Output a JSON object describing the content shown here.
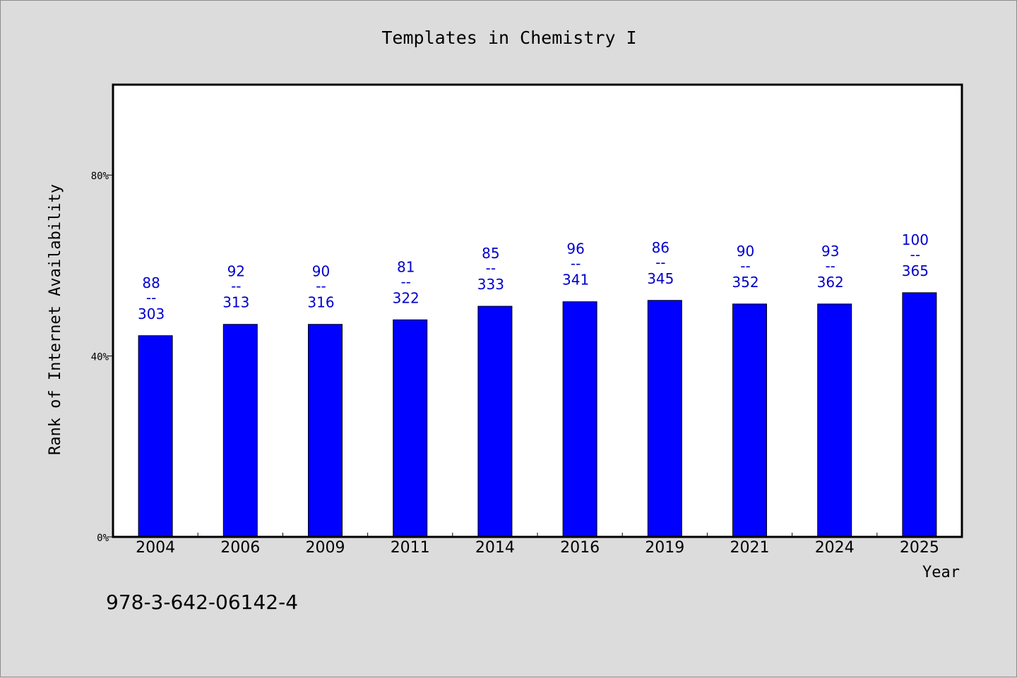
{
  "chart_data": {
    "type": "bar",
    "title": "Templates in Chemistry I",
    "xlabel": "Year",
    "ylabel": "Rank of Internet Availability",
    "categories": [
      "2004",
      "2006",
      "2009",
      "2011",
      "2014",
      "2016",
      "2019",
      "2021",
      "2024",
      "2025"
    ],
    "values": [
      44.5,
      47,
      47,
      48,
      51,
      52,
      52.3,
      51.5,
      51.5,
      54
    ],
    "label_top": [
      "88",
      "92",
      "90",
      "81",
      "85",
      "96",
      "86",
      "90",
      "93",
      "100"
    ],
    "label_bottom": [
      "303",
      "313",
      "316",
      "322",
      "333",
      "341",
      "345",
      "352",
      "362",
      "365"
    ],
    "label_separator": "--",
    "ylim": [
      0,
      100
    ],
    "yticks": [
      0,
      40,
      80
    ],
    "ytick_labels": [
      "0%",
      "40%",
      "80%"
    ],
    "bar_color": "#0000ff",
    "label_color": "#0000cc",
    "grid": false
  },
  "footer": {
    "isbn": "978-3-642-06142-4"
  }
}
